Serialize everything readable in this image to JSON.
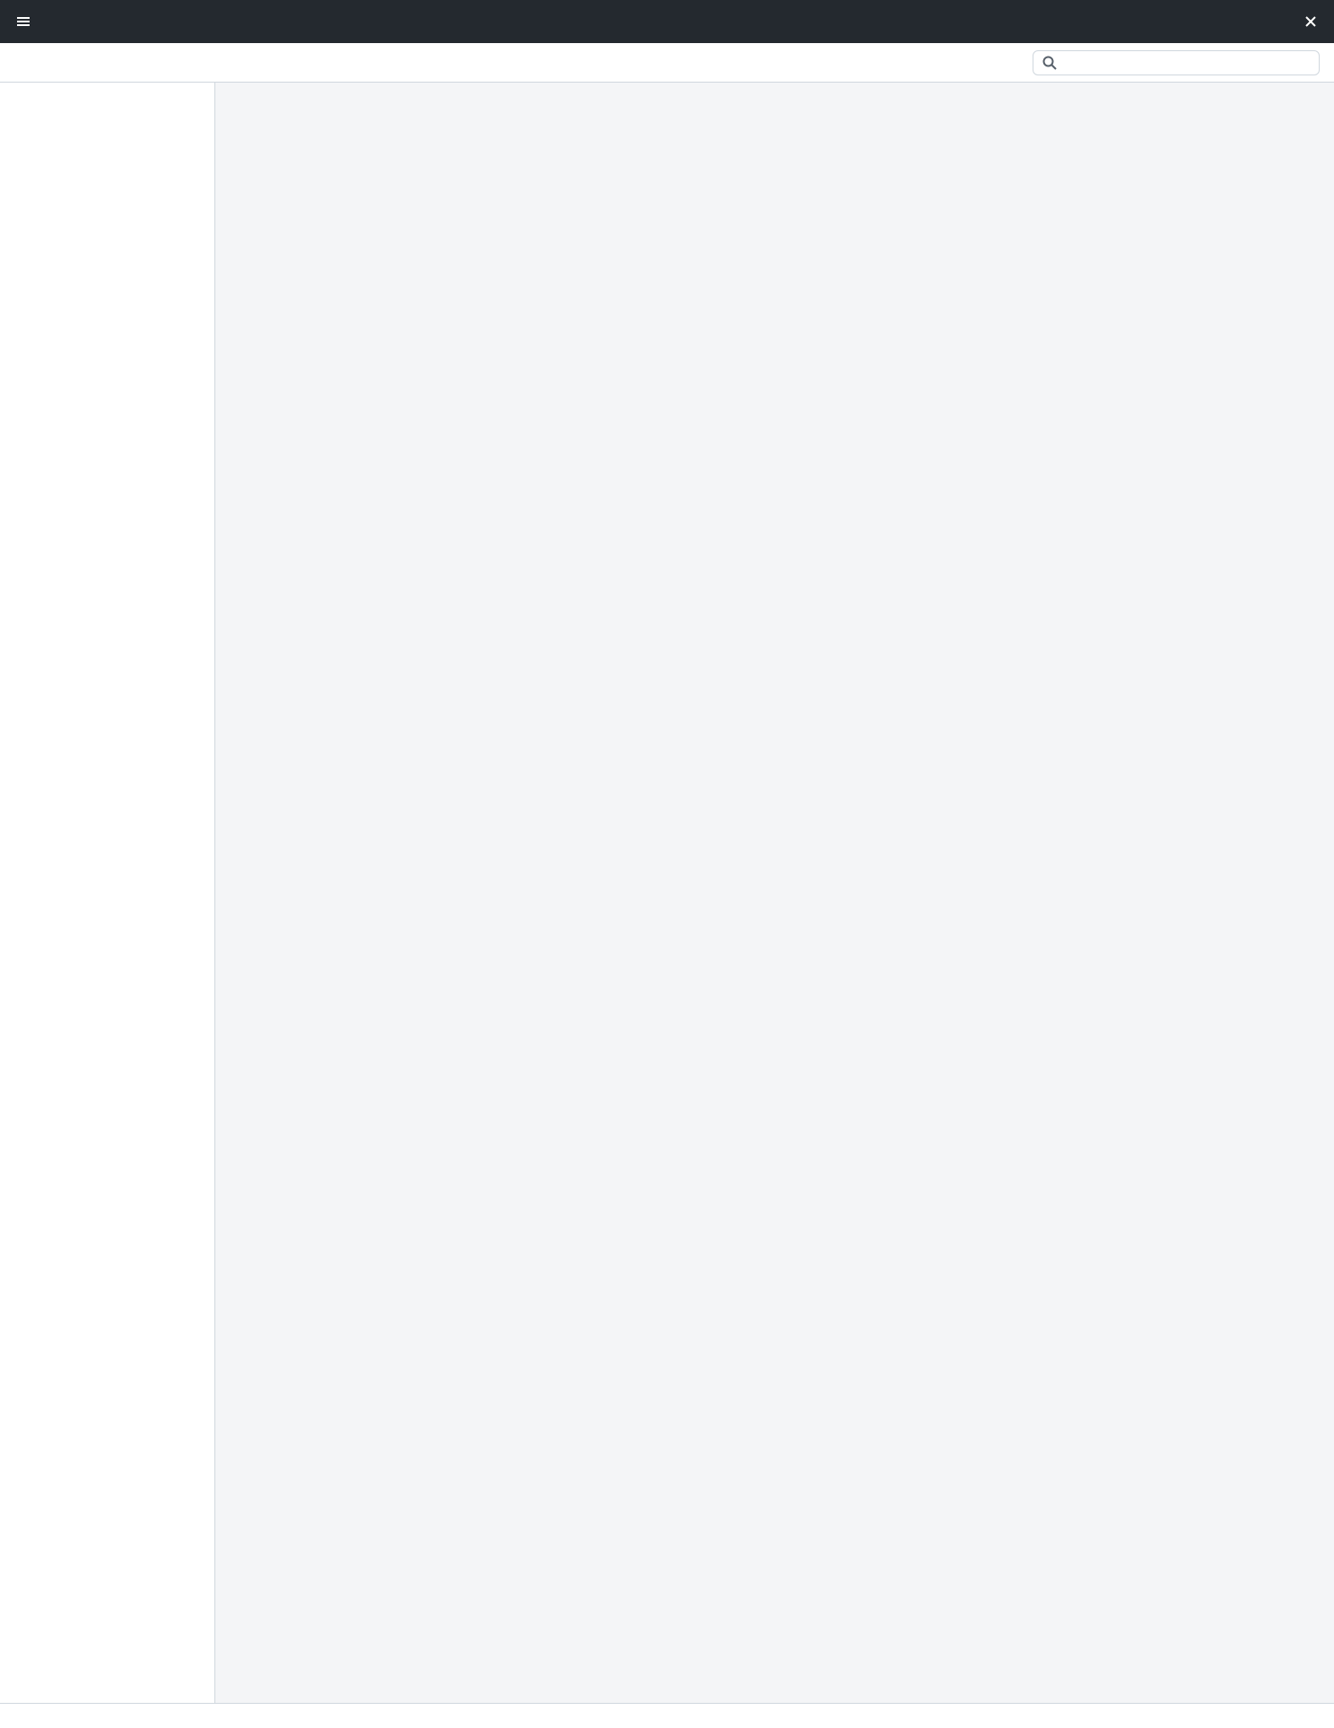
{
  "window": {
    "title": ""
  },
  "toolbar": {
    "buttons": [],
    "search_placeholder": ""
  },
  "sidebar": {
    "items": []
  },
  "main": {
    "title": "",
    "columns": [],
    "rows": []
  },
  "status": {
    "left": "",
    "right": ""
  }
}
